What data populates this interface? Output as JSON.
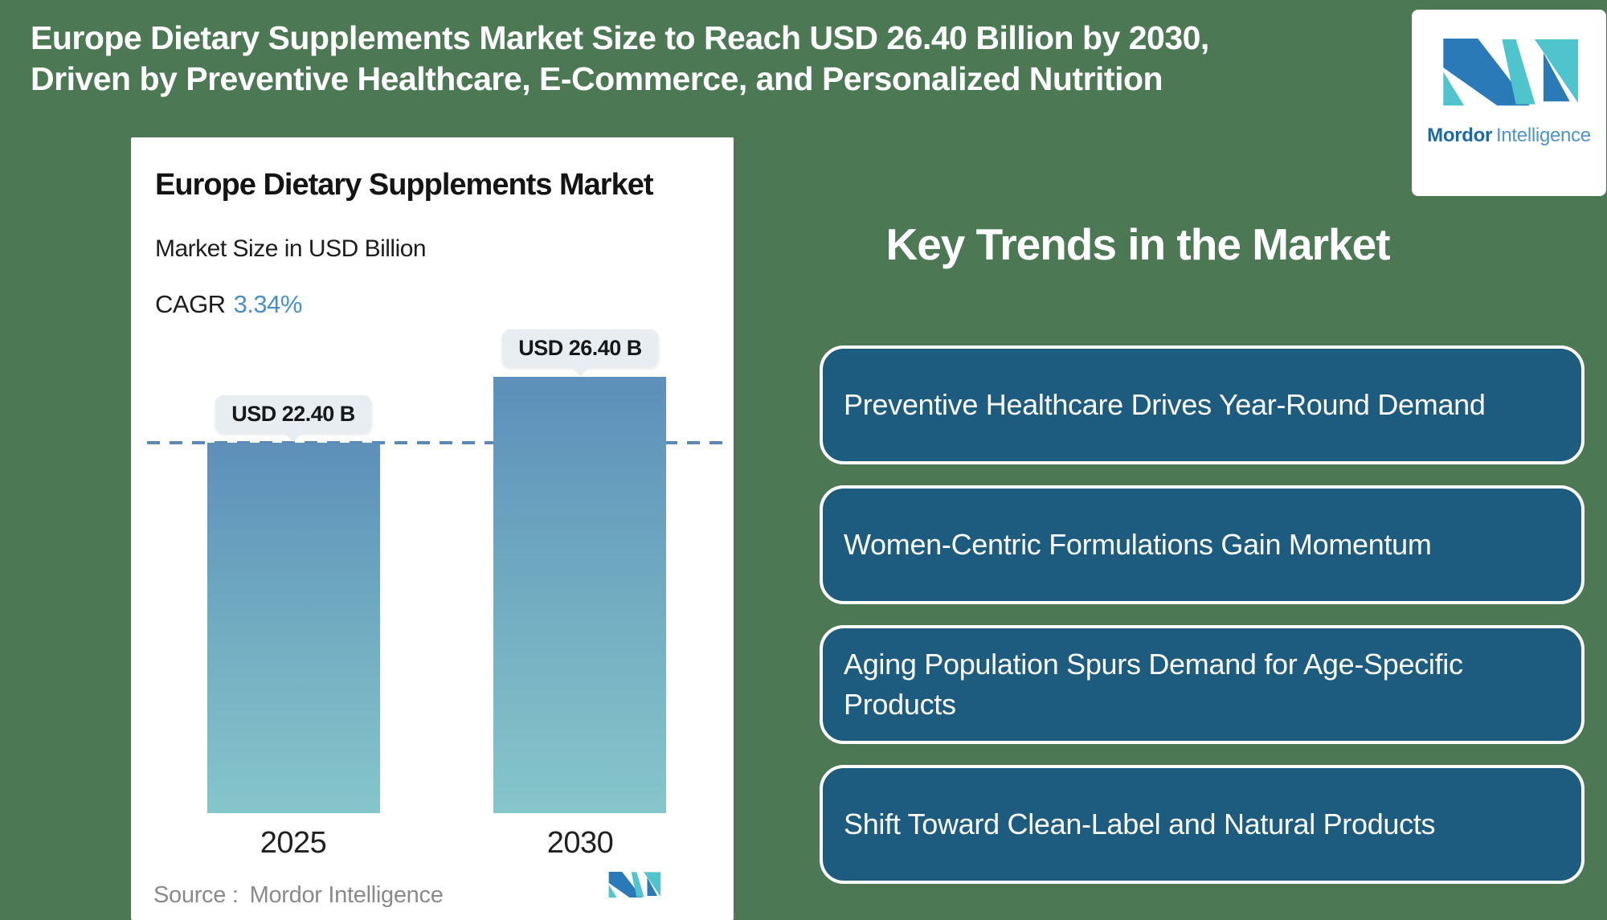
{
  "theme": {
    "bg-green": "#4c7953",
    "card-blue": "#1d5c7e",
    "bar-top": "#5d8fba",
    "bar-bottom": "#85c6cb",
    "dash-blue": "#5b89b5",
    "label-box": "#e7edf0",
    "cagr-blue": "#4a90c7",
    "brand-blue": "#2b7ab8",
    "brand-teal": "#4fc4cd",
    "mordor-text": "#1b6aa6",
    "intelligence-text": "#4e94c6",
    "source-gray": "#8a8a8a"
  },
  "header": {
    "lines": [
      "Europe Dietary Supplements Market Size to Reach USD 26.40 Billion by 2030,",
      "Driven by Preventive Healthcare, E-Commerce, and Personalized Nutrition"
    ]
  },
  "brand": {
    "name_bold": "Mordor",
    "name_light": "Intelligence"
  },
  "chart_card": {
    "title": "Europe Dietary Supplements Market",
    "subtitle": "Market Size in USD Billion",
    "cagr_label": "CAGR",
    "cagr_value": "3.34%",
    "source_label": "Source :",
    "source_value": "Mordor Intelligence"
  },
  "chart_data": {
    "type": "bar",
    "title": "Europe Dietary Supplements Market",
    "subtitle": "Market Size in USD Billion",
    "cagr_percent": 3.34,
    "categories": [
      "2025",
      "2030"
    ],
    "values": [
      22.4,
      26.4
    ],
    "value_labels": [
      "USD 22.40 B",
      "USD 26.40 B"
    ],
    "units": "USD Billion",
    "reference_line": 22.4,
    "ylim": [
      0,
      30
    ],
    "grid": false,
    "legend": false,
    "bar_gradient": [
      "#5d8fba",
      "#85c6cb"
    ],
    "source": "Mordor Intelligence"
  },
  "key_trends": {
    "heading": "Key Trends in the Market",
    "cards": [
      {
        "label": "Preventive Healthcare Drives Year-Round Demand"
      },
      {
        "label": "Women-Centric Formulations Gain Momentum"
      },
      {
        "label": "Aging Population Spurs Demand for Age-Specific Products"
      },
      {
        "label": "Shift Toward Clean-Label and Natural Products"
      }
    ]
  }
}
